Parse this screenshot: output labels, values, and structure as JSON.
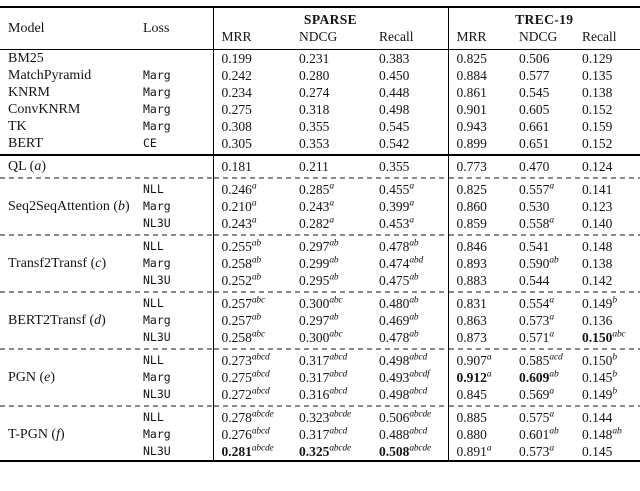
{
  "header": {
    "model": "Model",
    "loss": "Loss",
    "group_sparse": "SPARSE",
    "group_trec": "TREC-19",
    "metrics": [
      "MRR",
      "NDCG",
      "Recall"
    ]
  },
  "groups": [
    {
      "divider_after": "solid",
      "rows": [
        {
          "model": "BM25",
          "tag": "",
          "loss": "",
          "cells": [
            [
              "0.199",
              "",
              0
            ],
            [
              "0.231",
              "",
              0
            ],
            [
              "0.383",
              "",
              0
            ],
            [
              "0.825",
              "",
              0
            ],
            [
              "0.506",
              "",
              0
            ],
            [
              "0.129",
              "",
              0
            ]
          ]
        },
        {
          "model": "MatchPyramid",
          "tag": "",
          "loss": "Marg",
          "cells": [
            [
              "0.242",
              "",
              0
            ],
            [
              "0.280",
              "",
              0
            ],
            [
              "0.450",
              "",
              0
            ],
            [
              "0.884",
              "",
              0
            ],
            [
              "0.577",
              "",
              0
            ],
            [
              "0.135",
              "",
              0
            ]
          ]
        },
        {
          "model": "KNRM",
          "tag": "",
          "loss": "Marg",
          "cells": [
            [
              "0.234",
              "",
              0
            ],
            [
              "0.274",
              "",
              0
            ],
            [
              "0.448",
              "",
              0
            ],
            [
              "0.861",
              "",
              0
            ],
            [
              "0.545",
              "",
              0
            ],
            [
              "0.138",
              "",
              0
            ]
          ]
        },
        {
          "model": "ConvKNRM",
          "tag": "",
          "loss": "Marg",
          "cells": [
            [
              "0.275",
              "",
              0
            ],
            [
              "0.318",
              "",
              0
            ],
            [
              "0.498",
              "",
              0
            ],
            [
              "0.901",
              "",
              0
            ],
            [
              "0.605",
              "",
              0
            ],
            [
              "0.152",
              "",
              0
            ]
          ]
        },
        {
          "model": "TK",
          "tag": "",
          "loss": "Marg",
          "cells": [
            [
              "0.308",
              "",
              0
            ],
            [
              "0.355",
              "",
              0
            ],
            [
              "0.545",
              "",
              0
            ],
            [
              "0.943",
              "",
              0
            ],
            [
              "0.661",
              "",
              0
            ],
            [
              "0.159",
              "",
              0
            ]
          ]
        },
        {
          "model": "BERT",
          "tag": "",
          "loss": "CE",
          "cells": [
            [
              "0.305",
              "",
              0
            ],
            [
              "0.353",
              "",
              0
            ],
            [
              "0.542",
              "",
              0
            ],
            [
              "0.899",
              "",
              0
            ],
            [
              "0.651",
              "",
              0
            ],
            [
              "0.152",
              "",
              0
            ]
          ]
        }
      ]
    },
    {
      "divider_after": "dashed",
      "rows": [
        {
          "model": "QL",
          "tag": "a",
          "loss": "",
          "cells": [
            [
              "0.181",
              "",
              0
            ],
            [
              "0.211",
              "",
              0
            ],
            [
              "0.355",
              "",
              0
            ],
            [
              "0.773",
              "",
              0
            ],
            [
              "0.470",
              "",
              0
            ],
            [
              "0.124",
              "",
              0
            ]
          ]
        }
      ]
    },
    {
      "model": "Seq2SeqAttention",
      "tag": "b",
      "divider_after": "dashed",
      "rows": [
        {
          "loss": "NLL",
          "cells": [
            [
              "0.246",
              "a",
              0
            ],
            [
              "0.285",
              "a",
              0
            ],
            [
              "0.455",
              "a",
              0
            ],
            [
              "0.825",
              "",
              0
            ],
            [
              "0.557",
              "a",
              0
            ],
            [
              "0.141",
              "",
              0
            ]
          ]
        },
        {
          "loss": "Marg",
          "cells": [
            [
              "0.210",
              "a",
              0
            ],
            [
              "0.243",
              "a",
              0
            ],
            [
              "0.399",
              "a",
              0
            ],
            [
              "0.860",
              "",
              0
            ],
            [
              "0.530",
              "",
              0
            ],
            [
              "0.123",
              "",
              0
            ]
          ]
        },
        {
          "loss": "NL3U",
          "cells": [
            [
              "0.243",
              "a",
              0
            ],
            [
              "0.282",
              "a",
              0
            ],
            [
              "0.453",
              "a",
              0
            ],
            [
              "0.859",
              "",
              0
            ],
            [
              "0.558",
              "a",
              0
            ],
            [
              "0.140",
              "",
              0
            ]
          ]
        }
      ]
    },
    {
      "model": "Transf2Transf",
      "tag": "c",
      "divider_after": "dashed",
      "rows": [
        {
          "loss": "NLL",
          "cells": [
            [
              "0.255",
              "ab",
              0
            ],
            [
              "0.297",
              "ab",
              0
            ],
            [
              "0.478",
              "ab",
              0
            ],
            [
              "0.846",
              "",
              0
            ],
            [
              "0.541",
              "",
              0
            ],
            [
              "0.148",
              "",
              0
            ]
          ]
        },
        {
          "loss": "Marg",
          "cells": [
            [
              "0.258",
              "ab",
              0
            ],
            [
              "0.299",
              "ab",
              0
            ],
            [
              "0.474",
              "abd",
              0
            ],
            [
              "0.893",
              "",
              0
            ],
            [
              "0.590",
              "ab",
              0
            ],
            [
              "0.138",
              "",
              0
            ]
          ]
        },
        {
          "loss": "NL3U",
          "cells": [
            [
              "0.252",
              "ab",
              0
            ],
            [
              "0.295",
              "ab",
              0
            ],
            [
              "0.475",
              "ab",
              0
            ],
            [
              "0.883",
              "",
              0
            ],
            [
              "0.544",
              "",
              0
            ],
            [
              "0.142",
              "",
              0
            ]
          ]
        }
      ]
    },
    {
      "model": "BERT2Transf",
      "tag": "d",
      "divider_after": "dashed",
      "rows": [
        {
          "loss": "NLL",
          "cells": [
            [
              "0.257",
              "abc",
              0
            ],
            [
              "0.300",
              "abc",
              0
            ],
            [
              "0.480",
              "ab",
              0
            ],
            [
              "0.831",
              "",
              0
            ],
            [
              "0.554",
              "a",
              0
            ],
            [
              "0.149",
              "b",
              0
            ]
          ]
        },
        {
          "loss": "Marg",
          "cells": [
            [
              "0.257",
              "ab",
              0
            ],
            [
              "0.297",
              "ab",
              0
            ],
            [
              "0.469",
              "ab",
              0
            ],
            [
              "0.863",
              "",
              0
            ],
            [
              "0.573",
              "a",
              0
            ],
            [
              "0.136",
              "",
              0
            ]
          ]
        },
        {
          "loss": "NL3U",
          "cells": [
            [
              "0.258",
              "abc",
              0
            ],
            [
              "0.300",
              "abc",
              0
            ],
            [
              "0.478",
              "ab",
              0
            ],
            [
              "0.873",
              "",
              0
            ],
            [
              "0.571",
              "a",
              0
            ],
            [
              "0.150",
              "abc",
              1
            ]
          ]
        }
      ]
    },
    {
      "model": "PGN",
      "tag": "e",
      "divider_after": "dashed",
      "rows": [
        {
          "loss": "NLL",
          "cells": [
            [
              "0.273",
              "abcd",
              0
            ],
            [
              "0.317",
              "abcd",
              0
            ],
            [
              "0.498",
              "abcd",
              0
            ],
            [
              "0.907",
              "a",
              0
            ],
            [
              "0.585",
              "acd",
              0
            ],
            [
              "0.150",
              "b",
              0
            ]
          ]
        },
        {
          "loss": "Marg",
          "cells": [
            [
              "0.275",
              "abcd",
              0
            ],
            [
              "0.317",
              "abcd",
              0
            ],
            [
              "0.493",
              "abcdf",
              0
            ],
            [
              "0.912",
              "a",
              1
            ],
            [
              "0.609",
              "ab",
              1
            ],
            [
              "0.145",
              "b",
              0
            ]
          ]
        },
        {
          "loss": "NL3U",
          "cells": [
            [
              "0.272",
              "abcd",
              0
            ],
            [
              "0.316",
              "abcd",
              0
            ],
            [
              "0.498",
              "abcd",
              0
            ],
            [
              "0.845",
              "",
              0
            ],
            [
              "0.569",
              "a",
              0
            ],
            [
              "0.149",
              "b",
              0
            ]
          ]
        }
      ]
    },
    {
      "model": "T-PGN",
      "tag": "f",
      "divider_after": "",
      "rows": [
        {
          "loss": "NLL",
          "cells": [
            [
              "0.278",
              "abcde",
              0
            ],
            [
              "0.323",
              "abcde",
              0
            ],
            [
              "0.506",
              "abcde",
              0
            ],
            [
              "0.885",
              "",
              0
            ],
            [
              "0.575",
              "a",
              0
            ],
            [
              "0.144",
              "",
              0
            ]
          ]
        },
        {
          "loss": "Marg",
          "cells": [
            [
              "0.276",
              "abcd",
              0
            ],
            [
              "0.317",
              "abcd",
              0
            ],
            [
              "0.488",
              "abcd",
              0
            ],
            [
              "0.880",
              "",
              0
            ],
            [
              "0.601",
              "ab",
              0
            ],
            [
              "0.148",
              "ab",
              0
            ]
          ]
        },
        {
          "loss": "NL3U",
          "cells": [
            [
              "0.281",
              "abcde",
              1
            ],
            [
              "0.325",
              "abcde",
              1
            ],
            [
              "0.508",
              "abcde",
              1
            ],
            [
              "0.891",
              "a",
              0
            ],
            [
              "0.573",
              "a",
              0
            ],
            [
              "0.145",
              "",
              0
            ]
          ]
        }
      ]
    }
  ]
}
